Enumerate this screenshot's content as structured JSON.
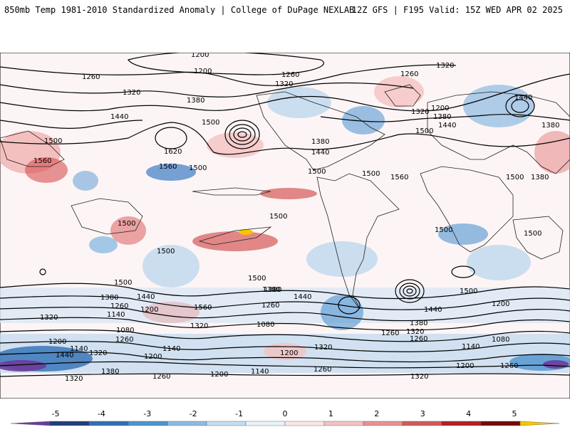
{
  "header": {
    "title": "850mb Temp 1981-2010 Standardized Anomaly | College of DuPage NEXLAB",
    "model_info": "12Z GFS | F195 Valid: 15Z WED APR 02 2025"
  },
  "map": {
    "contour_labels": [
      {
        "text": "1200"
      },
      {
        "text": "1200"
      },
      {
        "text": "1260"
      },
      {
        "text": "1320"
      },
      {
        "text": "1380"
      },
      {
        "text": "1440"
      },
      {
        "text": "1500"
      },
      {
        "text": "1500"
      },
      {
        "text": "1560"
      },
      {
        "text": "1560"
      },
      {
        "text": "1620"
      },
      {
        "text": "1500"
      },
      {
        "text": "1500"
      },
      {
        "text": "1380"
      },
      {
        "text": "1440"
      },
      {
        "text": "1500"
      },
      {
        "text": "1260"
      },
      {
        "text": "1320"
      },
      {
        "text": "1380"
      },
      {
        "text": "1440"
      },
      {
        "text": "1500"
      },
      {
        "text": "1560"
      },
      {
        "text": "1260"
      },
      {
        "text": "1320"
      },
      {
        "text": "1200"
      },
      {
        "text": "1320"
      },
      {
        "text": "1380"
      },
      {
        "text": "1440"
      },
      {
        "text": "1500"
      },
      {
        "text": "1380"
      },
      {
        "text": "1500"
      },
      {
        "text": "1500"
      },
      {
        "text": "1500"
      },
      {
        "text": "1500"
      },
      {
        "text": "1500"
      },
      {
        "text": "1500"
      },
      {
        "text": "1500"
      },
      {
        "text": "1380"
      },
      {
        "text": "1440"
      },
      {
        "text": "1560"
      },
      {
        "text": "1320"
      },
      {
        "text": "1320"
      },
      {
        "text": "1380"
      },
      {
        "text": "1260"
      },
      {
        "text": "1200"
      },
      {
        "text": "1140"
      },
      {
        "text": "1380"
      },
      {
        "text": "1440"
      },
      {
        "text": "1260"
      },
      {
        "text": "1080"
      },
      {
        "text": "1200"
      },
      {
        "text": "1380"
      },
      {
        "text": "1320"
      },
      {
        "text": "1260"
      },
      {
        "text": "1440"
      },
      {
        "text": "1260"
      },
      {
        "text": "1500"
      },
      {
        "text": "1200"
      },
      {
        "text": "1080"
      },
      {
        "text": "1140"
      },
      {
        "text": "1200"
      },
      {
        "text": "1260"
      },
      {
        "text": "1320"
      },
      {
        "text": "1380"
      },
      {
        "text": "1320"
      },
      {
        "text": "1260"
      },
      {
        "text": "1200"
      },
      {
        "text": "1140"
      },
      {
        "text": "1200"
      },
      {
        "text": "1320"
      },
      {
        "text": "1260"
      },
      {
        "text": "1140"
      },
      {
        "text": "1260"
      },
      {
        "text": "1200"
      },
      {
        "text": "1080"
      },
      {
        "text": "1140"
      },
      {
        "text": "1440"
      },
      {
        "text": "1320"
      }
    ]
  },
  "colorbar": {
    "ticks": [
      "-5",
      "-4",
      "-3",
      "-2",
      "-1",
      "0",
      "1",
      "2",
      "3",
      "4",
      "5"
    ],
    "colors": [
      "#6a3d9a",
      "#1f3f7a",
      "#2f6fb5",
      "#4f93d0",
      "#8cbbe3",
      "#c5dcf0",
      "#eaf2fa",
      "#fbe6e6",
      "#f4c2c2",
      "#e89090",
      "#d45858",
      "#b52020",
      "#7a0a0a",
      "#f6c600"
    ]
  }
}
